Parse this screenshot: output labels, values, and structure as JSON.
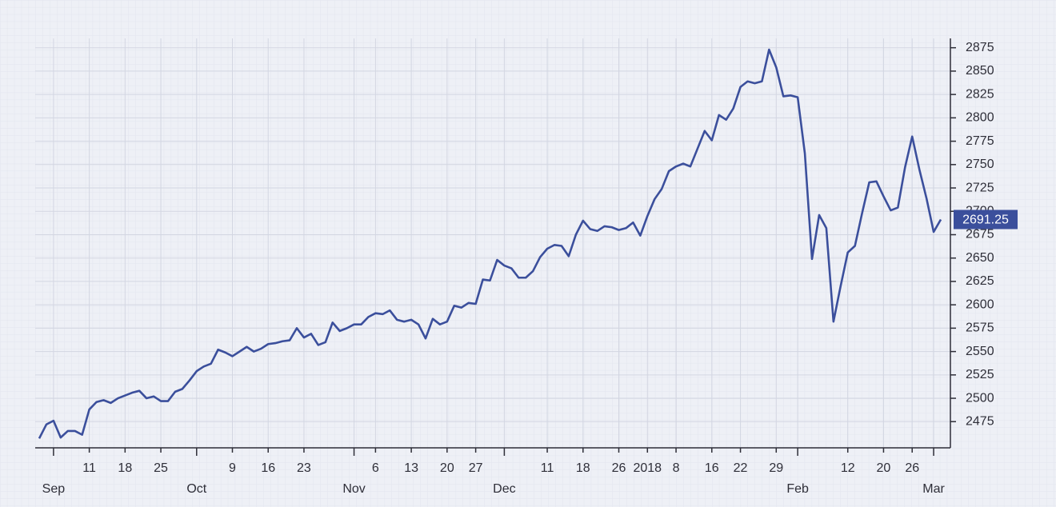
{
  "chart_data": {
    "type": "line",
    "x": [
      "Aug 30",
      "Aug 31",
      "Sep 1",
      "Sep 5",
      "Sep 6",
      "Sep 7",
      "Sep 8",
      "Sep 11",
      "Sep 12",
      "Sep 13",
      "Sep 14",
      "Sep 15",
      "Sep 18",
      "Sep 19",
      "Sep 20",
      "Sep 21",
      "Sep 22",
      "Sep 25",
      "Sep 26",
      "Sep 27",
      "Sep 28",
      "Sep 29",
      "Oct 2",
      "Oct 3",
      "Oct 4",
      "Oct 5",
      "Oct 6",
      "Oct 9",
      "Oct 10",
      "Oct 11",
      "Oct 12",
      "Oct 13",
      "Oct 16",
      "Oct 17",
      "Oct 18",
      "Oct 19",
      "Oct 20",
      "Oct 23",
      "Oct 24",
      "Oct 25",
      "Oct 26",
      "Oct 27",
      "Oct 30",
      "Oct 31",
      "Nov 1",
      "Nov 2",
      "Nov 3",
      "Nov 6",
      "Nov 7",
      "Nov 8",
      "Nov 9",
      "Nov 10",
      "Nov 13",
      "Nov 14",
      "Nov 15",
      "Nov 16",
      "Nov 17",
      "Nov 20",
      "Nov 21",
      "Nov 22",
      "Nov 24",
      "Nov 27",
      "Nov 28",
      "Nov 29",
      "Nov 30",
      "Dec 1",
      "Dec 4",
      "Dec 5",
      "Dec 6",
      "Dec 7",
      "Dec 8",
      "Dec 11",
      "Dec 12",
      "Dec 13",
      "Dec 14",
      "Dec 15",
      "Dec 18",
      "Dec 19",
      "Dec 20",
      "Dec 21",
      "Dec 22",
      "Dec 26",
      "Dec 27",
      "Dec 28",
      "Dec 29",
      "Jan 2",
      "Jan 3",
      "Jan 4",
      "Jan 5",
      "Jan 8",
      "Jan 9",
      "Jan 10",
      "Jan 11",
      "Jan 12",
      "Jan 16",
      "Jan 17",
      "Jan 18",
      "Jan 19",
      "Jan 22",
      "Jan 23",
      "Jan 24",
      "Jan 25",
      "Jan 26",
      "Jan 29",
      "Jan 30",
      "Jan 31",
      "Feb 1",
      "Feb 2",
      "Feb 5",
      "Feb 6",
      "Feb 7",
      "Feb 8",
      "Feb 9",
      "Feb 12",
      "Feb 13",
      "Feb 14",
      "Feb 15",
      "Feb 16",
      "Feb 20",
      "Feb 21",
      "Feb 22",
      "Feb 23",
      "Feb 26",
      "Feb 27",
      "Feb 28",
      "Mar 1",
      "Mar 2"
    ],
    "series": [
      {
        "color": "#3b4f9c",
        "values": [
          2457,
          2472,
          2476,
          2458,
          2465,
          2465,
          2461,
          2488,
          2496,
          2498,
          2495,
          2500,
          2503,
          2506,
          2508,
          2500,
          2502,
          2497,
          2497,
          2507,
          2510,
          2519,
          2529,
          2534,
          2537,
          2552,
          2549,
          2545,
          2550,
          2555,
          2550,
          2553,
          2558,
          2559,
          2561,
          2562,
          2575,
          2565,
          2569,
          2557,
          2560,
          2581,
          2572,
          2575,
          2579,
          2579,
          2587,
          2591,
          2590,
          2594,
          2584,
          2582,
          2584,
          2579,
          2564,
          2585,
          2579,
          2582,
          2599,
          2597,
          2602,
          2601,
          2627,
          2626,
          2648,
          2642,
          2639,
          2629,
          2629,
          2636,
          2651,
          2660,
          2664,
          2663,
          2652,
          2675,
          2690,
          2681,
          2679,
          2684,
          2683,
          2680,
          2682,
          2688,
          2674,
          2695,
          2713,
          2724,
          2743,
          2748,
          2751,
          2748,
          2767,
          2786,
          2776,
          2803,
          2798,
          2810,
          2833,
          2839,
          2837,
          2839,
          2873,
          2854,
          2823,
          2824,
          2822,
          2762,
          2649,
          2696,
          2682,
          2582,
          2620,
          2656,
          2663,
          2698,
          2731,
          2732,
          2716,
          2701,
          2704,
          2747,
          2780,
          2745,
          2714,
          2678,
          2691.25
        ]
      }
    ],
    "xticks": [
      {
        "value": "Sep 1",
        "label": "Sep"
      },
      {
        "value": "Sep 11",
        "label": "11"
      },
      {
        "value": "Sep 18",
        "label": "18"
      },
      {
        "value": "Sep 25",
        "label": "25"
      },
      {
        "value": "Oct 2",
        "label": "Oct"
      },
      {
        "value": "Oct 9",
        "label": "9"
      },
      {
        "value": "Oct 16",
        "label": "16"
      },
      {
        "value": "Oct 23",
        "label": "23"
      },
      {
        "value": "Nov 1",
        "label": "Nov"
      },
      {
        "value": "Nov 6",
        "label": "6"
      },
      {
        "value": "Nov 13",
        "label": "13"
      },
      {
        "value": "Nov 20",
        "label": "20"
      },
      {
        "value": "Nov 27",
        "label": "27"
      },
      {
        "value": "Dec 1",
        "label": "Dec"
      },
      {
        "value": "Dec 11",
        "label": "11"
      },
      {
        "value": "Dec 18",
        "label": "18"
      },
      {
        "value": "Dec 26",
        "label": "26"
      },
      {
        "value": "Jan 2",
        "label": "2018"
      },
      {
        "value": "Jan 8",
        "label": "8"
      },
      {
        "value": "Jan 16",
        "label": "16"
      },
      {
        "value": "Jan 22",
        "label": "22"
      },
      {
        "value": "Jan 29",
        "label": "29"
      },
      {
        "value": "Feb 1",
        "label": "Feb"
      },
      {
        "value": "Feb 12",
        "label": "12"
      },
      {
        "value": "Feb 20",
        "label": "20"
      },
      {
        "value": "Feb 26",
        "label": "26"
      },
      {
        "value": "Mar 1",
        "label": "Mar"
      }
    ],
    "ylim": [
      2447,
      2885
    ],
    "yticks": [
      2475,
      2500,
      2525,
      2550,
      2575,
      2600,
      2625,
      2650,
      2675,
      2700,
      2725,
      2750,
      2775,
      2800,
      2825,
      2850,
      2875
    ],
    "grid": true
  }
}
